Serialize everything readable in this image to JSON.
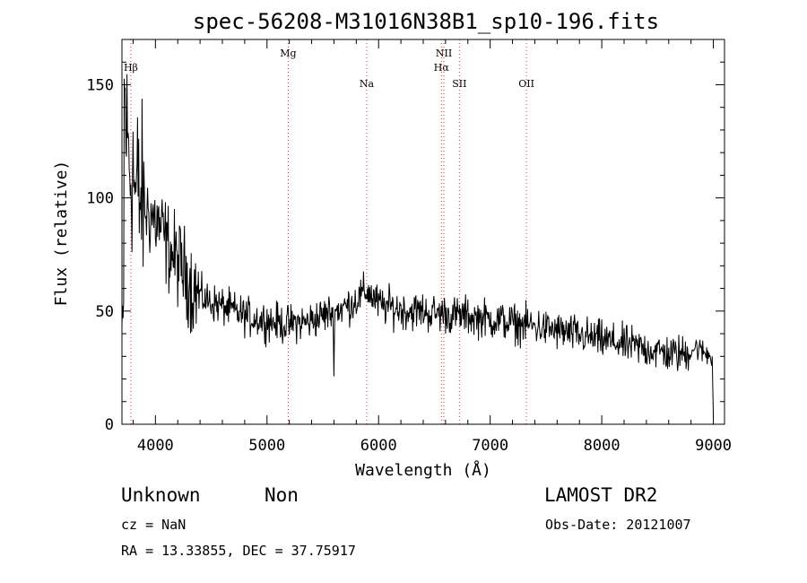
{
  "title": "spec-56208-M31016N38B1_sp10-196.fits",
  "footer": {
    "class": "Unknown",
    "subclass": "Non",
    "survey": "LAMOST DR2",
    "cz": "cz = NaN",
    "obs_date": "Obs-Date: 20121007",
    "coords": "RA =  13.33855, DEC =  37.75917"
  },
  "chart_data": {
    "type": "line",
    "xlabel": "Wavelength (Å)",
    "ylabel": "Flux (relative)",
    "xlim": [
      3700,
      9100
    ],
    "ylim": [
      0,
      170
    ],
    "xticks": [
      4000,
      5000,
      6000,
      7000,
      8000,
      9000
    ],
    "yticks": [
      0,
      50,
      100,
      150
    ],
    "lines": [
      {
        "label": "Hβ",
        "wavelength": 3780,
        "row": 1
      },
      {
        "label": "Mg",
        "wavelength": 5190,
        "row": 0
      },
      {
        "label": "Na",
        "wavelength": 5893,
        "row": 2
      },
      {
        "label": "NII",
        "wavelength": 6585,
        "row": 0
      },
      {
        "label": "Hα",
        "wavelength": 6563,
        "row": 1
      },
      {
        "label": "SII",
        "wavelength": 6724,
        "row": 2
      },
      {
        "label": "OII",
        "wavelength": 7325,
        "row": 2
      }
    ],
    "series": [
      {
        "x": [
          3700,
          3720,
          3740,
          3760,
          3780,
          3800,
          3820,
          3840,
          3860,
          3880,
          3900,
          3950,
          4000,
          4050,
          4100,
          4150,
          4200,
          4250,
          4300,
          4350,
          4400,
          4450,
          4500,
          4550,
          4600,
          4650,
          4700,
          4750,
          4800,
          4850,
          4900,
          4950,
          5000,
          5050,
          5100,
          5150,
          5200,
          5250,
          5300,
          5350,
          5400,
          5450,
          5500,
          5550,
          5600,
          5650,
          5700,
          5750,
          5800,
          5850,
          5900,
          5950,
          6000,
          6050,
          6100,
          6150,
          6200,
          6250,
          6300,
          6350,
          6400,
          6450,
          6500,
          6550,
          6600,
          6650,
          6700,
          6750,
          6800,
          6850,
          6900,
          6950,
          7000,
          7050,
          7100,
          7150,
          7200,
          7250,
          7300,
          7350,
          7400,
          7450,
          7500,
          7550,
          7600,
          7650,
          7700,
          7750,
          7800,
          7850,
          7900,
          7950,
          8000,
          8050,
          8100,
          8150,
          8200,
          8250,
          8300,
          8350,
          8400,
          8450,
          8500,
          8550,
          8600,
          8650,
          8700,
          8750,
          8800,
          8850,
          8900,
          8950,
          8990,
          9000
        ],
        "y": [
          40,
          150,
          130,
          120,
          110,
          115,
          100,
          105,
          98,
          100,
          95,
          93,
          90,
          86,
          80,
          75,
          72,
          68,
          64,
          60,
          57,
          55,
          54,
          53,
          52,
          51,
          50,
          49,
          48,
          47,
          47,
          46,
          46,
          45,
          45,
          44,
          44,
          45,
          45,
          45,
          46,
          47,
          48,
          49,
          50,
          51,
          52,
          53,
          55,
          57,
          59,
          56,
          53,
          52,
          52,
          51,
          51,
          50,
          50,
          50,
          50,
          49,
          49,
          49,
          49,
          48,
          48,
          48,
          48,
          47,
          47,
          47,
          46,
          46,
          46,
          45,
          45,
          44,
          44,
          44,
          43,
          43,
          42,
          42,
          41,
          41,
          40,
          40,
          39,
          39,
          38,
          38,
          37,
          37,
          36,
          36,
          35,
          35,
          34,
          34,
          33,
          33,
          32,
          32,
          31,
          31,
          31,
          31,
          33,
          34,
          32,
          31,
          30,
          3
        ]
      }
    ]
  }
}
